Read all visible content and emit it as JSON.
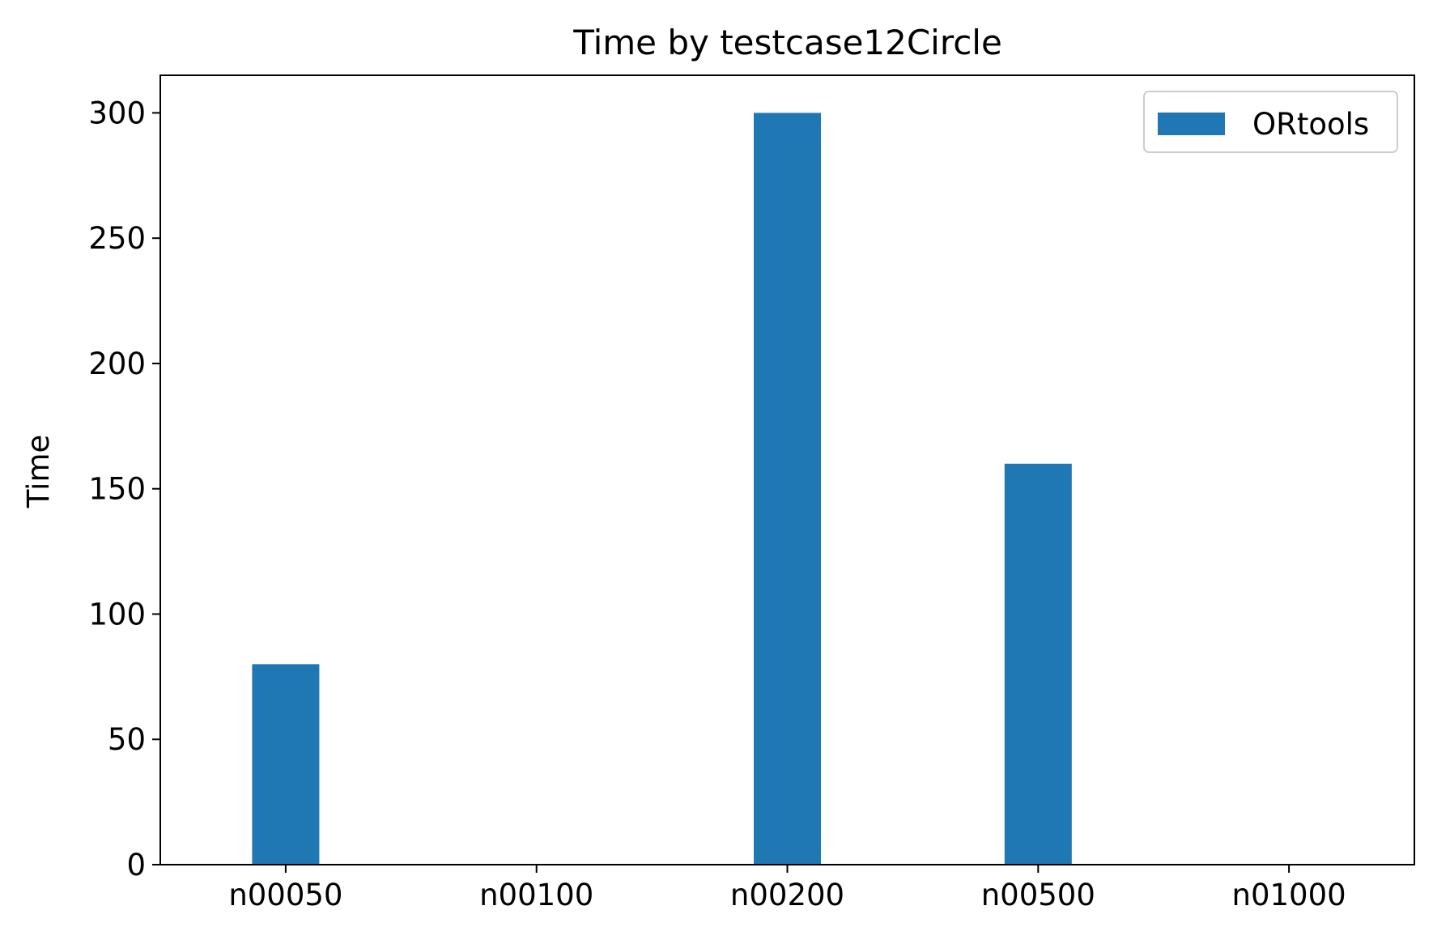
{
  "chart_data": {
    "type": "bar",
    "title": "Time by testcase12Circle",
    "xlabel": "",
    "ylabel": "Time",
    "categories": [
      "n00050",
      "n00100",
      "n00200",
      "n00500",
      "n01000"
    ],
    "series": [
      {
        "name": "ORtools",
        "values": [
          80,
          0,
          300,
          160,
          0
        ],
        "color": "#1f77b4"
      }
    ],
    "ylim": [
      0,
      315
    ],
    "yticks": [
      0,
      50,
      100,
      150,
      200,
      250,
      300
    ],
    "grid": false,
    "legend_position": "top-right"
  }
}
